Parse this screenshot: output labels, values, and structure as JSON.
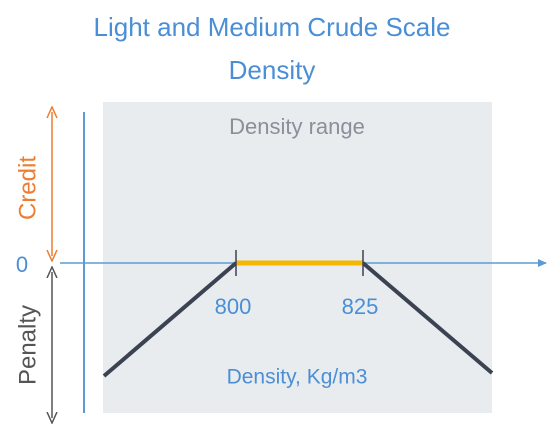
{
  "title": "Light and Medium Crude Scale",
  "subtitle": "Density",
  "range_label": "Density range",
  "y_axis": {
    "credit": "Credit",
    "zero": "0",
    "penalty": "Penalty"
  },
  "x_axis": {
    "ticks": [
      "800",
      "825"
    ],
    "label": "Density, Kg/m3"
  }
}
